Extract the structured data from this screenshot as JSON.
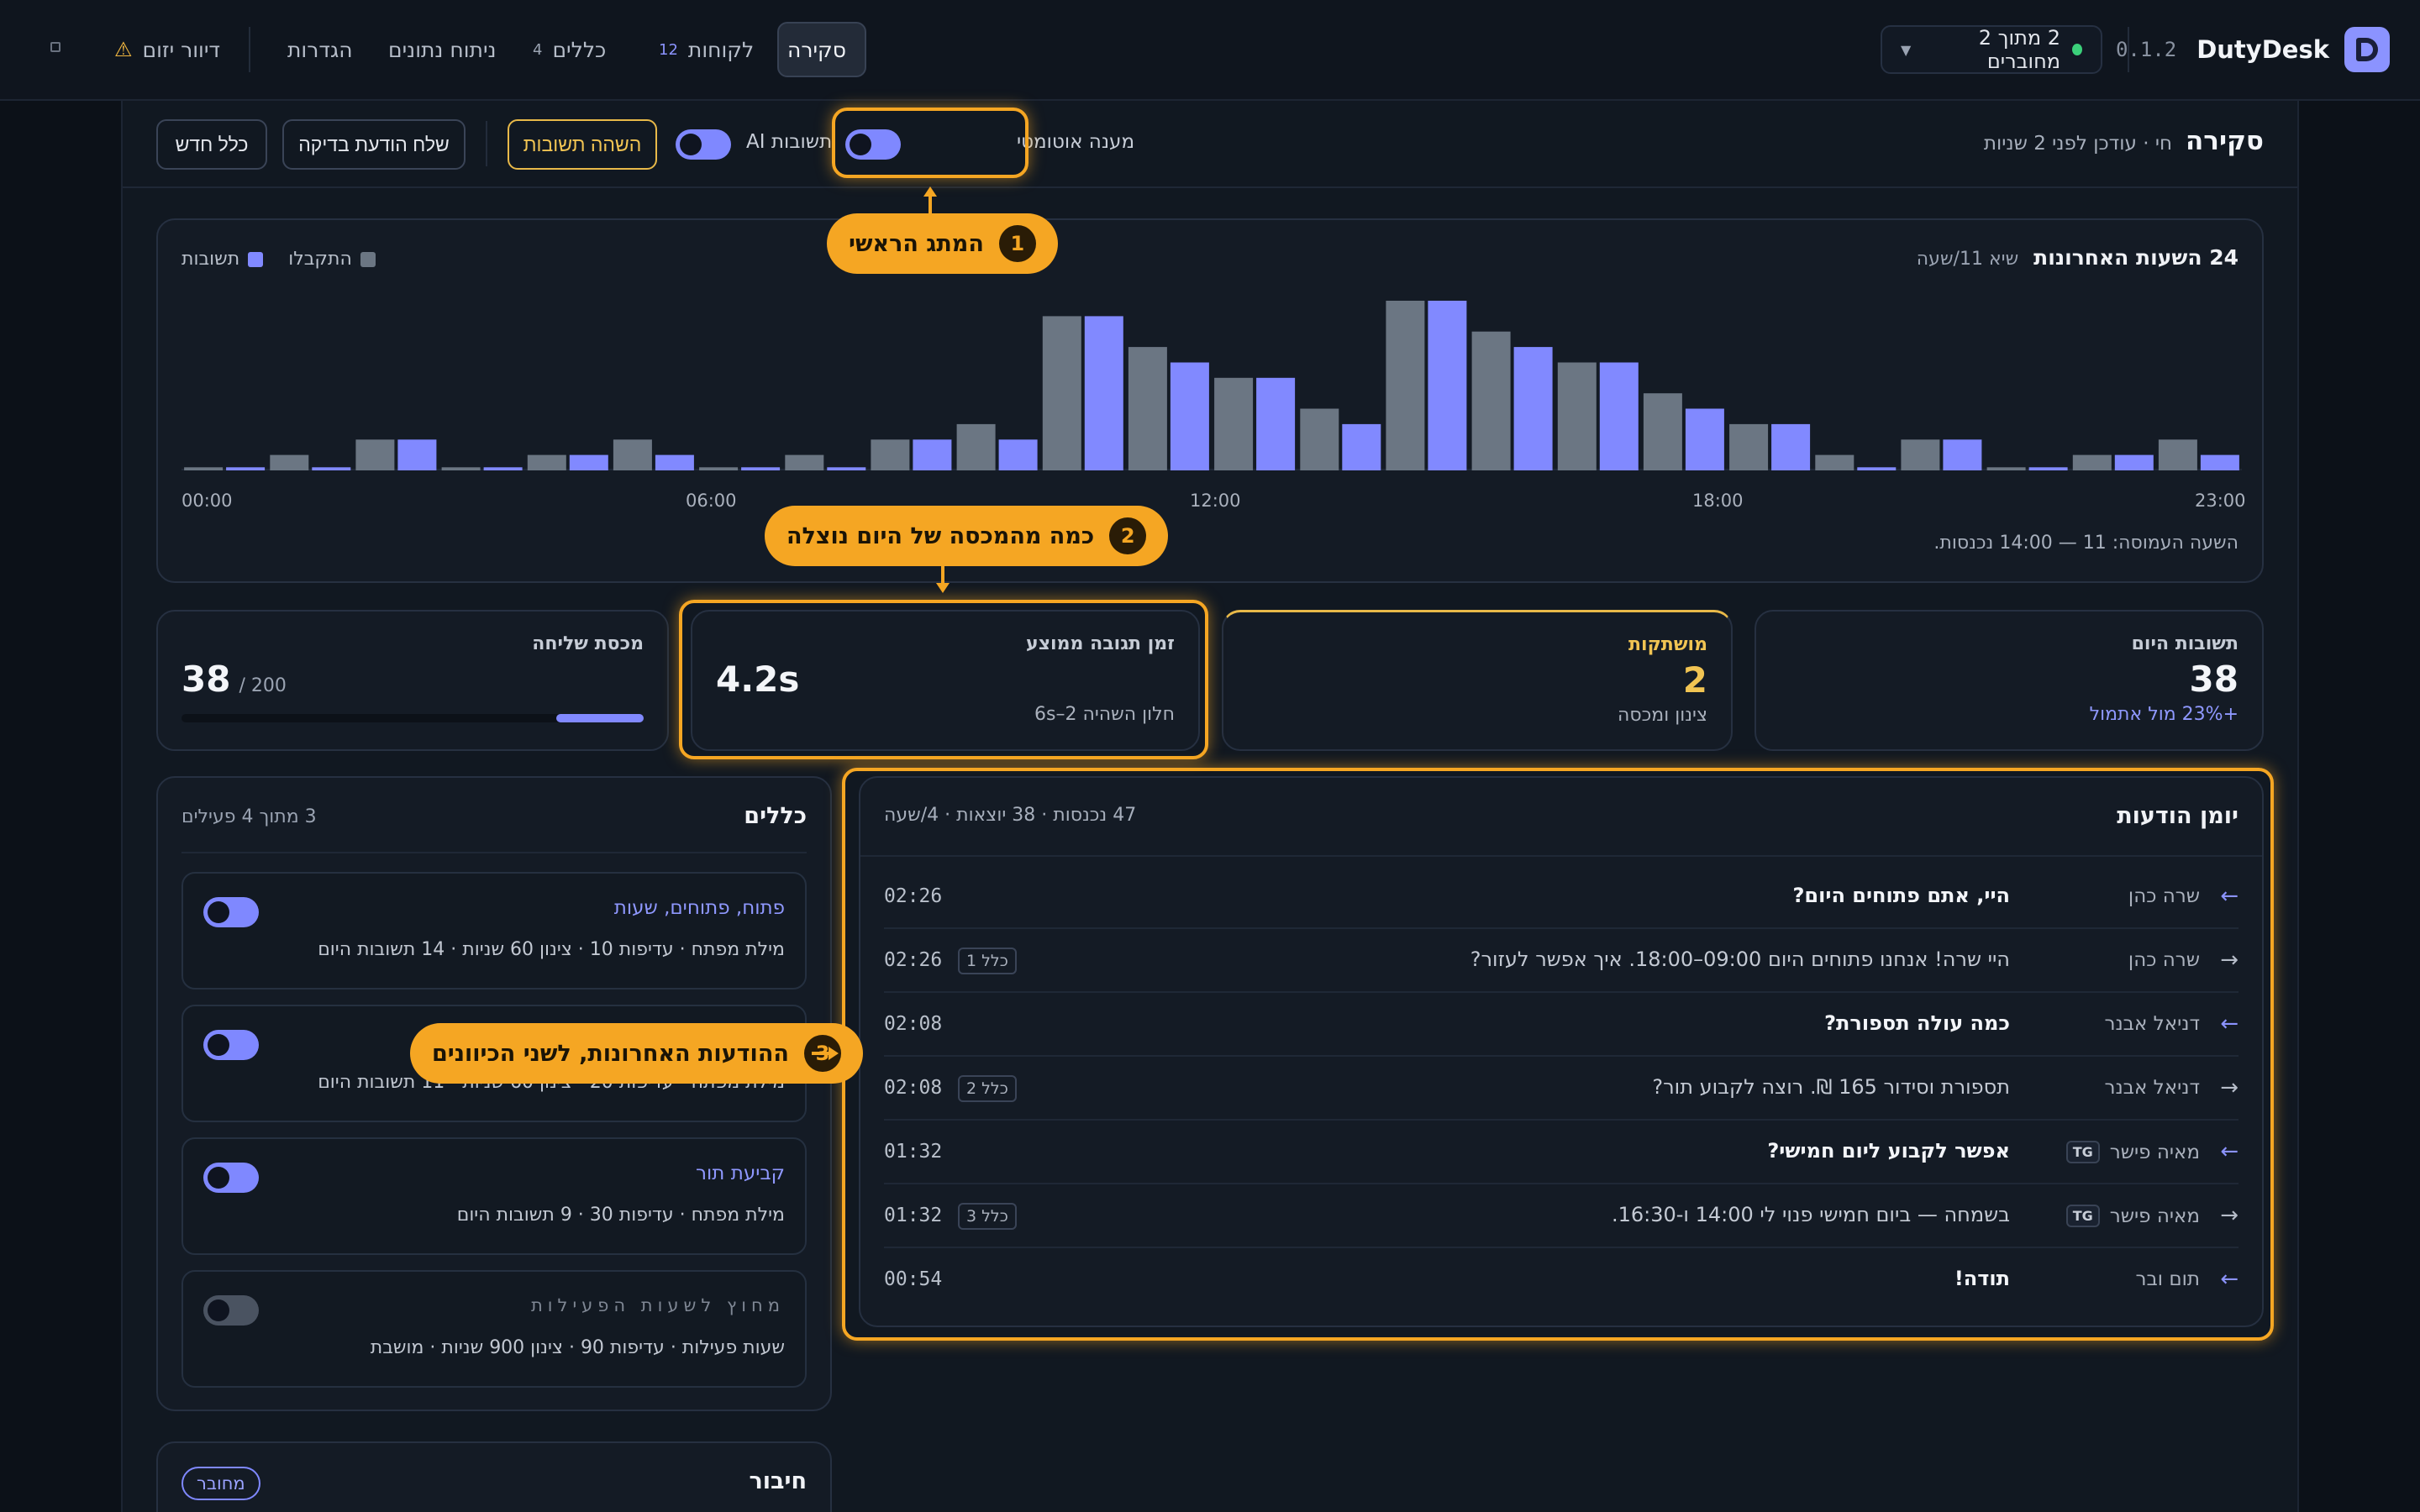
{
  "app": {
    "name": "DutyDesk",
    "version": "0.1.2"
  },
  "topbar": {
    "connected_label": "2 מתוך 2 מחוברים",
    "nav": [
      {
        "label": "סקירה",
        "badge": ""
      },
      {
        "label": "לקוחות",
        "badge": "12"
      },
      {
        "label": "כללים",
        "badge": "4"
      },
      {
        "label": "ניתוח נתונים",
        "badge": ""
      },
      {
        "label": "הגדרות",
        "badge": ""
      },
      {
        "label": "דיוור יזום",
        "badge": ""
      }
    ]
  },
  "subheader": {
    "title": "סקירה",
    "status": "חי · עודכן לפני 2 שניות",
    "auto_responder_label": "מענה אוטומטי",
    "ai_label": "תשובות AI",
    "pause_button": "השהה תשובות",
    "test_button": "שלח הודעת בדיקה",
    "new_rule_button": "כלל חדש"
  },
  "chart_card": {
    "title": "24 השעות האחרונות",
    "peak": "שיא 11/שעה",
    "legend": [
      "התקבלו",
      "תשובות"
    ],
    "footer": "השעה העמוסה: 11 — 14:00 נכנסות."
  },
  "chart_data": {
    "type": "bar",
    "categories": [
      "00",
      "01",
      "02",
      "03",
      "04",
      "05",
      "06",
      "07",
      "08",
      "09",
      "10",
      "11",
      "12",
      "13",
      "14",
      "15",
      "16",
      "17",
      "18",
      "19",
      "20",
      "21",
      "22",
      "23"
    ],
    "x_tick_labels": [
      "00:00",
      "06:00",
      "12:00",
      "18:00",
      "23:00"
    ],
    "series": [
      {
        "name": "התקבלו",
        "color": "#6b7683",
        "values": [
          0.2,
          1,
          2,
          0.2,
          1,
          2,
          0.2,
          1,
          2,
          3,
          10,
          8,
          6,
          4,
          11,
          9,
          7,
          5,
          3,
          1,
          2,
          0.2,
          1,
          2
        ]
      },
      {
        "name": "תשובות",
        "color": "#8189ff",
        "values": [
          0.2,
          0.2,
          2,
          0.2,
          1,
          1,
          0.2,
          0.2,
          2,
          2,
          10,
          7,
          6,
          3,
          11,
          8,
          7,
          4,
          3,
          0.2,
          2,
          0.2,
          1,
          1
        ]
      }
    ],
    "ylim": [
      0,
      11
    ],
    "grid": false,
    "legend_position": "top-left"
  },
  "stats": [
    {
      "label": "תשובות היום",
      "value": "38",
      "sub": "+23% מול אתמול"
    },
    {
      "label": "מושתקות",
      "value": "2",
      "sub": "צינון ומכסה"
    },
    {
      "label": "זמן תגובה ממוצע",
      "value": "4.2s",
      "sub": "חלון השהיה 2–6s"
    },
    {
      "label": "מכסת שליחה",
      "value": "38",
      "of": "/ 200",
      "fill": 0.19
    }
  ],
  "log": {
    "title": "יומן הודעות",
    "stats": "47 נכנסות · 38 יוצאות · 4/שעה",
    "rows": [
      {
        "dir": "in",
        "name": "שרה כהן",
        "tg": "",
        "msg": "היי, אתם פתוחים היום?",
        "rule": "",
        "time": "02:26"
      },
      {
        "dir": "out",
        "name": "שרה כהן",
        "tg": "",
        "msg": "היי שרה! אנחנו פתוחים היום 09:00–18:00. איך אפשר לעזור?",
        "rule": "כלל 1",
        "time": "02:26"
      },
      {
        "dir": "in",
        "name": "דניאל אבנר",
        "tg": "",
        "msg": "כמה עולה תספורת?",
        "rule": "",
        "time": "02:08"
      },
      {
        "dir": "out",
        "name": "דניאל אבנר",
        "tg": "",
        "msg": "תספורת וסידור 165 ₪. רוצה לקבוע תור?",
        "rule": "כלל 2",
        "time": "02:08"
      },
      {
        "dir": "in",
        "name": "מאיה פישר",
        "tg": "TG",
        "msg": "אפשר לקבוע ליום חמישי?",
        "rule": "",
        "time": "01:32"
      },
      {
        "dir": "out",
        "name": "מאיה פישר",
        "tg": "TG",
        "msg": "בשמחה — ביום חמישי פנוי לי 14:00 ו-16:30.",
        "rule": "כלל 3",
        "time": "01:32"
      },
      {
        "dir": "in",
        "name": "תום ובר",
        "tg": "",
        "msg": "תודה!",
        "rule": "",
        "time": "00:54"
      }
    ]
  },
  "rules": {
    "title": "כללים",
    "count": "3 מתוך 4 פעילים",
    "items": [
      {
        "name": "פתוח, פתוחים, שעות",
        "meta": "מילת מפתח · עדיפות 10 · צינון 60 שניות · 14 תשובות היום",
        "enabled": true
      },
      {
        "name": "",
        "meta": "מילת מפתח · עדיפות 20 · צינון 60 שניות · 11 תשובות היום",
        "enabled": true
      },
      {
        "name": "קביעת תור",
        "meta": "מילת מפתח · עדיפות 30 · 9 תשובות היום",
        "enabled": true
      },
      {
        "name": "מחוץ לשעות הפעילות",
        "meta": "שעות פעילות · עדיפות 90 · צינון 900 שניות · מושבת",
        "enabled": false
      }
    ]
  },
  "connection": {
    "title": "חיבור",
    "badge": "מחובר"
  },
  "callouts": [
    {
      "num": "1",
      "text": "המתג הראשי"
    },
    {
      "num": "2",
      "text": "כמה מהמכסה של היום נוצלה"
    },
    {
      "num": "3",
      "text": "ההודעות האחרונות, לשני הכיוונים"
    }
  ]
}
